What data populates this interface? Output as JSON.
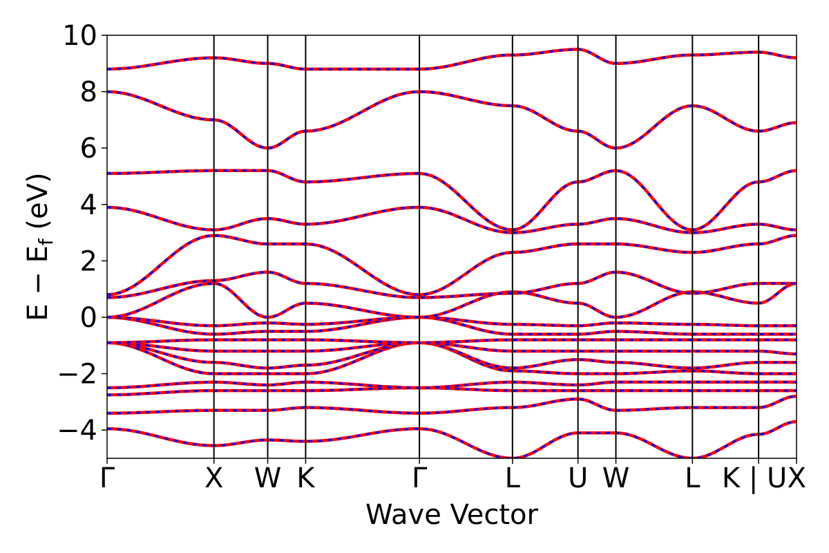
{
  "chart_data": {
    "type": "line",
    "xlabel": "Wave Vector",
    "ylabel": "E − E_f (eV)",
    "ylabel_main": "E  −  E",
    "ylabel_sub": "f",
    "ylabel_unit": " (eV)",
    "ylim": [
      -5,
      10
    ],
    "yticks": [
      -4,
      -2,
      0,
      2,
      4,
      6,
      8,
      10
    ],
    "ytick_labels": [
      "−4",
      "−2",
      "0",
      "2",
      "4",
      "6",
      "8",
      "10"
    ],
    "kpath": [
      {
        "label": "Γ",
        "x": 0.0
      },
      {
        "label": "X",
        "x": 0.155
      },
      {
        "label": "W",
        "x": 0.233
      },
      {
        "label": "K",
        "x": 0.288
      },
      {
        "label": "Γ",
        "x": 0.453
      },
      {
        "label": "L",
        "x": 0.588
      },
      {
        "label": "U",
        "x": 0.683
      },
      {
        "label": "W",
        "x": 0.738
      },
      {
        "label": "L",
        "x": 0.849
      },
      {
        "label": "K | U",
        "x": 0.945
      },
      {
        "label": "X",
        "x": 1.0
      }
    ],
    "series_styles": [
      {
        "style": "solid",
        "color": "#ff0000"
      },
      {
        "style": "dashed",
        "color": "#0000ff"
      }
    ],
    "bands": [
      {
        "x": [
          0,
          0.155,
          0.233,
          0.288,
          0.453,
          0.588,
          0.683,
          0.738,
          0.849,
          0.945,
          1.0
        ],
        "y": [
          -3.95,
          -4.55,
          -4.35,
          -4.4,
          -3.95,
          -5.0,
          -4.1,
          -4.1,
          -5.0,
          -4.15,
          -3.7
        ]
      },
      {
        "x": [
          0,
          0.155,
          0.233,
          0.288,
          0.453,
          0.588,
          0.683,
          0.738,
          0.849,
          0.945,
          1.0
        ],
        "y": [
          -3.4,
          -3.3,
          -3.3,
          -3.2,
          -3.4,
          -3.2,
          -2.9,
          -3.3,
          -3.2,
          -3.2,
          -2.8
        ]
      },
      {
        "x": [
          0,
          0.155,
          0.233,
          0.288,
          0.453,
          0.588,
          0.683,
          0.738,
          0.849,
          0.945,
          1.0
        ],
        "y": [
          -2.75,
          -2.6,
          -2.6,
          -2.6,
          -2.5,
          -2.6,
          -2.6,
          -2.6,
          -2.6,
          -2.6,
          -2.6
        ]
      },
      {
        "x": [
          0,
          0.155,
          0.233,
          0.288,
          0.453,
          0.588,
          0.683,
          0.738,
          0.849,
          0.945,
          1.0
        ],
        "y": [
          -2.5,
          -2.3,
          -2.4,
          -2.3,
          -2.5,
          -2.3,
          -2.4,
          -2.3,
          -2.3,
          -2.3,
          -2.3
        ]
      },
      {
        "x": [
          0,
          0.155,
          0.233,
          0.288,
          0.453,
          0.588,
          0.683,
          0.738,
          0.849,
          0.945,
          1.0
        ],
        "y": [
          -0.9,
          -2.0,
          -2.0,
          -2.0,
          -0.9,
          -1.9,
          -2.0,
          -2.0,
          -1.9,
          -2.0,
          -2.0
        ]
      },
      {
        "x": [
          0,
          0.155,
          0.233,
          0.288,
          0.453,
          0.588,
          0.683,
          0.738,
          0.849,
          0.945,
          1.0
        ],
        "y": [
          -0.9,
          -1.6,
          -1.8,
          -1.7,
          -0.9,
          -1.8,
          -1.5,
          -1.6,
          -1.8,
          -1.6,
          -1.6
        ]
      },
      {
        "x": [
          0,
          0.155,
          0.233,
          0.288,
          0.453,
          0.588,
          0.683,
          0.738,
          0.849,
          0.945,
          1.0
        ],
        "y": [
          -0.9,
          -1.2,
          -1.2,
          -1.2,
          -0.9,
          -1.2,
          -1.2,
          -1.2,
          -1.2,
          -1.2,
          -1.3
        ]
      },
      {
        "x": [
          0,
          0.155,
          0.233,
          0.288,
          0.453,
          0.588,
          0.683,
          0.738,
          0.849,
          0.945,
          1.0
        ],
        "y": [
          -0.9,
          -0.8,
          -0.8,
          -0.8,
          -0.9,
          -0.8,
          -0.8,
          -0.8,
          -0.8,
          -0.8,
          -0.8
        ]
      },
      {
        "x": [
          0,
          0.155,
          0.233,
          0.288,
          0.453,
          0.588,
          0.683,
          0.738,
          0.849,
          0.945,
          1.0
        ],
        "y": [
          0.0,
          -0.6,
          -0.5,
          -0.5,
          0.0,
          -0.6,
          -0.6,
          -0.5,
          -0.6,
          -0.6,
          -0.6
        ]
      },
      {
        "x": [
          0,
          0.155,
          0.233,
          0.288,
          0.453,
          0.588,
          0.683,
          0.738,
          0.849,
          0.945,
          1.0
        ],
        "y": [
          0.0,
          -0.3,
          -0.2,
          -0.25,
          0.0,
          -0.25,
          -0.3,
          -0.2,
          -0.25,
          -0.3,
          -0.3
        ]
      },
      {
        "x": [
          0,
          0.155,
          0.233,
          0.288,
          0.453,
          0.588,
          0.683,
          0.738,
          0.849,
          0.945,
          1.0
        ],
        "y": [
          0.0,
          1.2,
          0.0,
          0.5,
          0.0,
          0.9,
          0.5,
          0.0,
          0.9,
          0.5,
          1.2
        ]
      },
      {
        "x": [
          0,
          0.155,
          0.233,
          0.288,
          0.453,
          0.588,
          0.683,
          0.738,
          0.849,
          0.945,
          1.0
        ],
        "y": [
          0.7,
          1.3,
          1.6,
          1.2,
          0.7,
          0.85,
          1.2,
          1.6,
          0.85,
          1.2,
          1.2
        ]
      },
      {
        "x": [
          0,
          0.155,
          0.233,
          0.288,
          0.453,
          0.588,
          0.683,
          0.738,
          0.849,
          0.945,
          1.0
        ],
        "y": [
          0.8,
          2.9,
          2.6,
          2.6,
          0.8,
          2.3,
          2.6,
          2.6,
          2.3,
          2.6,
          2.9
        ]
      },
      {
        "x": [
          0,
          0.155,
          0.233,
          0.288,
          0.453,
          0.588,
          0.683,
          0.738,
          0.849,
          0.945,
          1.0
        ],
        "y": [
          3.9,
          3.1,
          3.5,
          3.3,
          3.9,
          3.0,
          3.3,
          3.5,
          3.0,
          3.3,
          3.1
        ]
      },
      {
        "x": [
          0,
          0.155,
          0.233,
          0.288,
          0.453,
          0.588,
          0.683,
          0.738,
          0.849,
          0.945,
          1.0
        ],
        "y": [
          5.1,
          5.2,
          5.2,
          4.8,
          5.1,
          3.1,
          4.8,
          5.2,
          3.1,
          4.8,
          5.2
        ]
      },
      {
        "x": [
          0,
          0.155,
          0.233,
          0.288,
          0.453,
          0.588,
          0.683,
          0.738,
          0.849,
          0.945,
          1.0
        ],
        "y": [
          8.0,
          7.0,
          6.0,
          6.6,
          8.0,
          7.5,
          6.6,
          6.0,
          7.5,
          6.6,
          6.9
        ]
      },
      {
        "x": [
          0,
          0.155,
          0.233,
          0.288,
          0.453,
          0.588,
          0.683,
          0.738,
          0.849,
          0.945,
          1.0
        ],
        "y": [
          8.8,
          9.2,
          9.0,
          8.8,
          8.8,
          9.3,
          9.5,
          9.0,
          9.3,
          9.4,
          9.2
        ]
      }
    ]
  }
}
